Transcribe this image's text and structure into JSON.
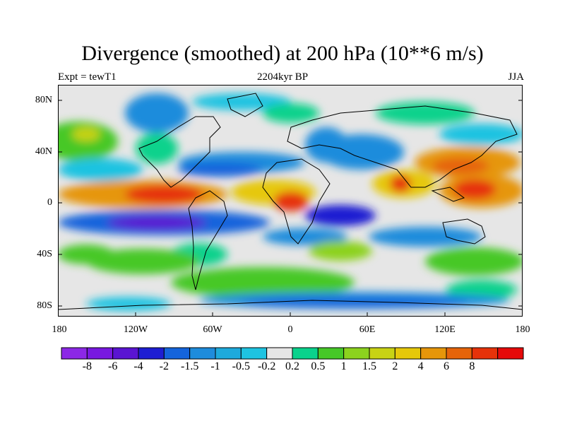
{
  "title": "Divergence (smoothed) at 200 hPa (10**6 m/s)",
  "experiment_label": "Expt = tewT1",
  "time_label": "2204kyr BP",
  "season_label": "JJA",
  "lat_ticks": [
    "80N",
    "40N",
    "0",
    "40S",
    "80S"
  ],
  "lon_ticks": [
    "180",
    "120W",
    "60W",
    "0",
    "60E",
    "120E",
    "180"
  ],
  "colorbar": {
    "colors": [
      "#8c28e6",
      "#7818e0",
      "#5a14d2",
      "#1e1ed2",
      "#1464dc",
      "#1e8cdc",
      "#1eaadc",
      "#1ec3e1",
      "#e6e6e6",
      "#0ad28c",
      "#46c828",
      "#8cd21e",
      "#c8d214",
      "#e6c80a",
      "#e6960a",
      "#e6640a",
      "#e6320a",
      "#e60a0a"
    ],
    "labels": [
      "-8",
      "-6",
      "-4",
      "-2",
      "-1.5",
      "-1",
      "-0.5",
      "-0.2",
      "0.2",
      "0.5",
      "1",
      "1.5",
      "2",
      "4",
      "6",
      "8"
    ]
  }
}
